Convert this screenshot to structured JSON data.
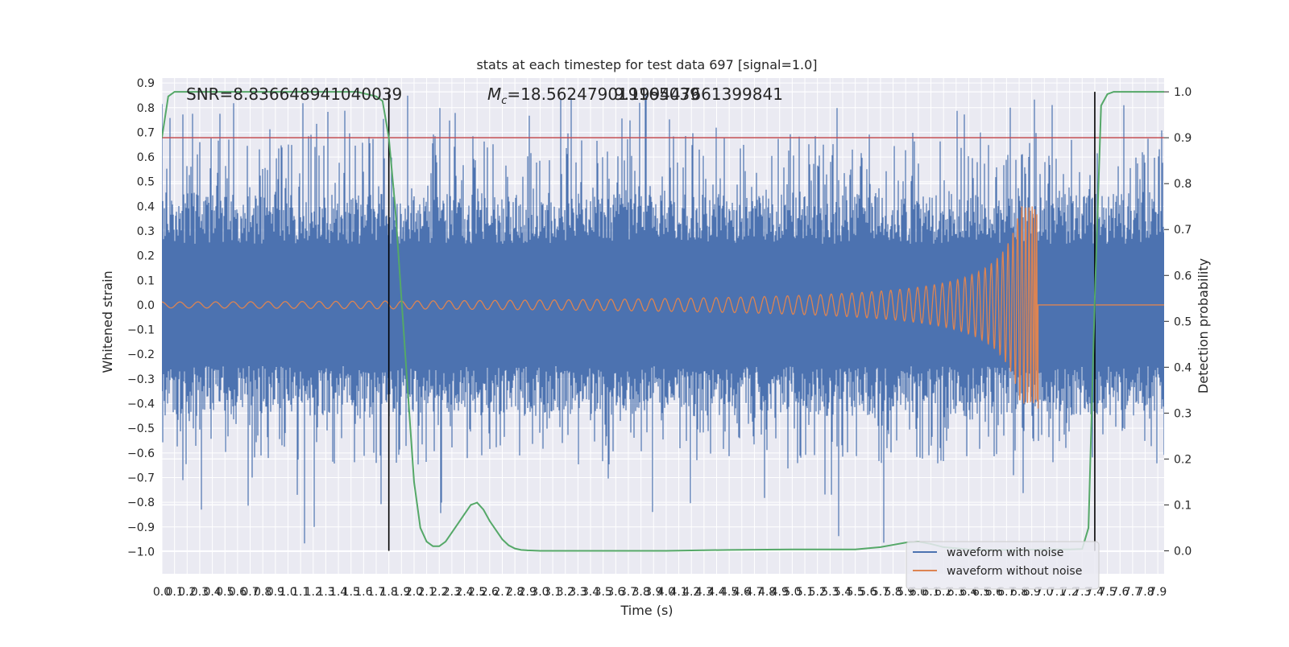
{
  "chart_data": {
    "type": "line",
    "title": "stats at each timestep for test data 697 [signal=1.0]",
    "xlabel": "Time (s)",
    "ylabel": "Whitened strain",
    "y2label": "Detection probability",
    "xlim": [
      0.0,
      7.95
    ],
    "ylim": [
      -1.09,
      0.92
    ],
    "y2lim": [
      -0.05,
      1.03
    ],
    "x_tick_labels": [
      "0.0",
      "0.1",
      "0.2",
      "0.3",
      "0.4",
      "0.5",
      "0.6",
      "0.7",
      "0.8",
      "0.9",
      "1.0",
      "1.1",
      "1.2",
      "1.3",
      "1.4",
      "1.5",
      "1.6",
      "1.7",
      "1.8",
      "1.9",
      "2.0",
      "2.1",
      "2.2",
      "2.3",
      "2.4",
      "2.5",
      "2.6",
      "2.7",
      "2.8",
      "2.9",
      "3.0",
      "3.1",
      "3.2",
      "3.3",
      "3.4",
      "3.5",
      "3.6",
      "3.7",
      "3.8",
      "3.9",
      "4.0",
      "4.1",
      "4.2",
      "4.3",
      "4.4",
      "4.5",
      "4.6",
      "4.7",
      "4.8",
      "4.9",
      "5.0",
      "5.1",
      "5.2",
      "5.3",
      "5.4",
      "5.5",
      "5.6",
      "5.7",
      "5.8",
      "5.9",
      "6.0",
      "6.1",
      "6.2",
      "6.3",
      "6.4",
      "6.5",
      "6.6",
      "6.7",
      "6.8",
      "6.9",
      "7.0",
      "7.1",
      "7.2",
      "7.3",
      "7.4",
      "7.5",
      "7.6",
      "7.7",
      "7.8",
      "7.9"
    ],
    "y_tick_labels": [
      "−1.0",
      "−0.9",
      "−0.8",
      "−0.7",
      "−0.6",
      "−0.5",
      "−0.4",
      "−0.3",
      "−0.2",
      "−0.1",
      "0.0",
      "0.1",
      "0.2",
      "0.3",
      "0.4",
      "0.5",
      "0.6",
      "0.7",
      "0.8",
      "0.9"
    ],
    "y_tick_values": [
      -1.0,
      -0.9,
      -0.8,
      -0.7,
      -0.6,
      -0.5,
      -0.4,
      -0.3,
      -0.2,
      -0.1,
      0.0,
      0.1,
      0.2,
      0.3,
      0.4,
      0.5,
      0.6,
      0.7,
      0.8,
      0.9
    ],
    "y2_tick_labels": [
      "0.0",
      "0.1",
      "0.2",
      "0.3",
      "0.4",
      "0.5",
      "0.6",
      "0.7",
      "0.8",
      "0.9",
      "1.0"
    ],
    "y2_tick_values": [
      0.0,
      0.1,
      0.2,
      0.3,
      0.4,
      0.5,
      0.6,
      0.7,
      0.8,
      0.9,
      1.0
    ],
    "annotations": {
      "snr": "SNR=8.836648941040039",
      "mc": "=18.562479019165039",
      "mc_symbol": "M",
      "mc_sub": "c",
      "overlap": "9.199447661399841"
    },
    "threshold": 0.9,
    "vlines_x": [
      1.8,
      7.4
    ],
    "noise_envelope": {
      "upper": 0.45,
      "lower": -0.45,
      "spike_max": 0.85,
      "spike_min": -1.0
    },
    "chirp": {
      "end_time": 6.95,
      "peak_amplitude": 0.4,
      "trough_amplitude": -0.42
    },
    "series": [
      {
        "name": "waveform with noise",
        "color": "#4c72b0"
      },
      {
        "name": "waveform without noise",
        "color": "#dd8452"
      },
      {
        "name": "detection probability",
        "color": "#55a868",
        "axis": "right",
        "x": [
          0.0,
          0.05,
          0.1,
          0.2,
          0.4,
          0.8,
          1.2,
          1.55,
          1.7,
          1.75,
          1.8,
          1.85,
          1.9,
          1.95,
          2.0,
          2.05,
          2.1,
          2.15,
          2.2,
          2.25,
          2.3,
          2.35,
          2.4,
          2.45,
          2.5,
          2.55,
          2.6,
          2.65,
          2.7,
          2.75,
          2.8,
          2.85,
          2.9,
          3.0,
          3.5,
          4.0,
          4.5,
          5.0,
          5.5,
          5.7,
          5.8,
          5.9,
          6.0,
          6.1,
          6.2,
          6.4,
          6.6,
          6.8,
          7.0,
          7.2,
          7.3,
          7.35,
          7.4,
          7.45,
          7.5,
          7.55,
          7.6,
          7.7,
          7.95
        ],
        "y": [
          0.9,
          0.99,
          1.0,
          1.0,
          1.0,
          1.0,
          1.0,
          1.0,
          0.99,
          0.98,
          0.9,
          0.75,
          0.55,
          0.35,
          0.15,
          0.05,
          0.02,
          0.01,
          0.01,
          0.02,
          0.04,
          0.06,
          0.08,
          0.1,
          0.105,
          0.09,
          0.065,
          0.045,
          0.025,
          0.012,
          0.005,
          0.002,
          0.001,
          0.0,
          0.0,
          0.0,
          0.002,
          0.003,
          0.003,
          0.008,
          0.013,
          0.018,
          0.02,
          0.015,
          0.008,
          0.003,
          0.002,
          0.002,
          0.003,
          0.003,
          0.004,
          0.05,
          0.55,
          0.97,
          0.995,
          1.0,
          1.0,
          1.0,
          1.0
        ]
      },
      {
        "name": "threshold",
        "color": "#c44e52"
      }
    ],
    "legend": {
      "position": "bottom-right",
      "entries": [
        "waveform with noise",
        "waveform without noise"
      ]
    },
    "grid": true
  }
}
